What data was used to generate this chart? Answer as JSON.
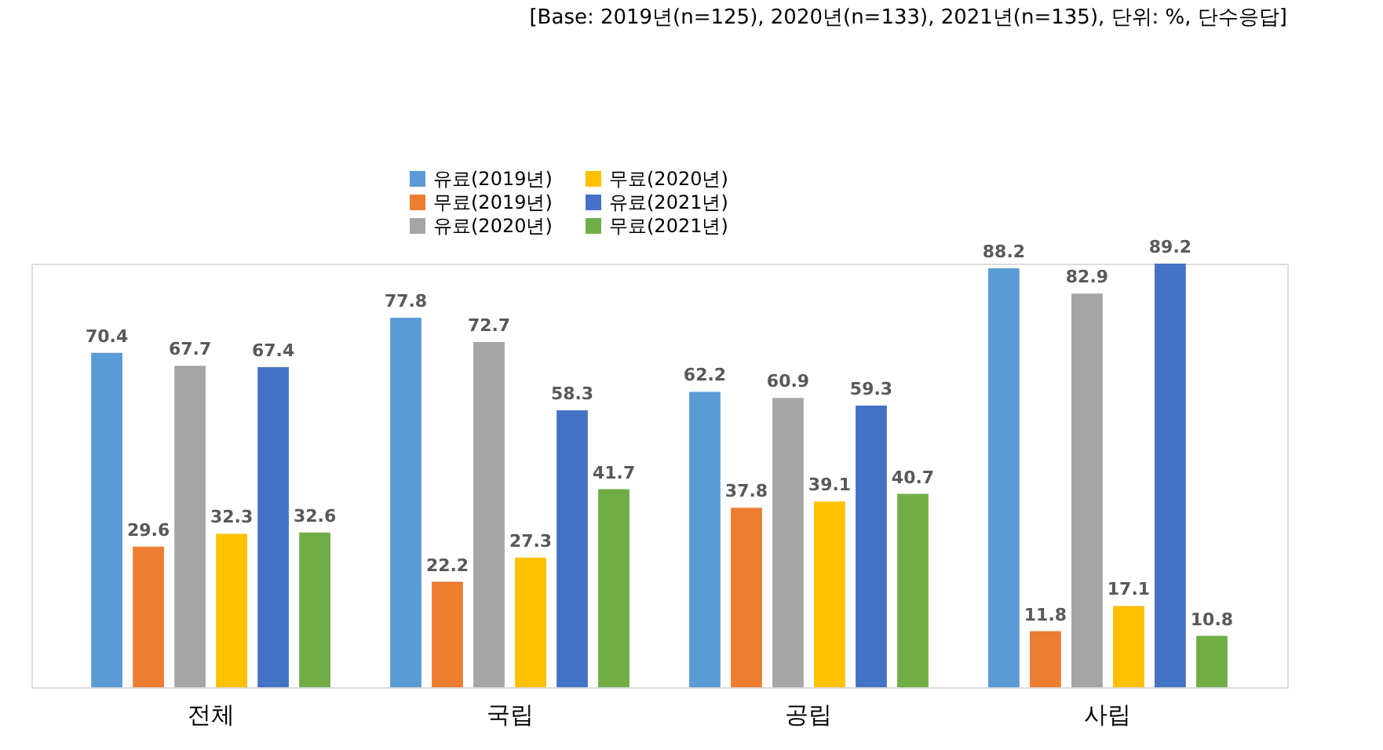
{
  "chart_data": {
    "type": "bar",
    "annotations": [
      "[Base: 2019년(n=125), 2020년(n=133), 2021년(n=135), 단위: %, 단수응답]"
    ],
    "categories": [
      "전체",
      "국립",
      "공립",
      "사립"
    ],
    "series": [
      {
        "name": "유료(2019년)",
        "color": "#5b9bd5",
        "values": [
          70.4,
          77.8,
          62.2,
          88.2
        ]
      },
      {
        "name": "무료(2019년)",
        "color": "#ed7d31",
        "values": [
          29.6,
          22.2,
          37.8,
          11.8
        ]
      },
      {
        "name": "유료(2020년)",
        "color": "#a5a5a5",
        "values": [
          67.7,
          72.7,
          60.9,
          82.9
        ]
      },
      {
        "name": "무료(2020년)",
        "color": "#ffc000",
        "values": [
          32.3,
          27.3,
          39.1,
          17.1
        ]
      },
      {
        "name": "유료(2021년)",
        "color": "#4472c4",
        "values": [
          67.4,
          58.3,
          59.3,
          89.2
        ]
      },
      {
        "name": "무료(2021년)",
        "color": "#70ad47",
        "values": [
          32.6,
          41.7,
          40.7,
          10.8
        ]
      }
    ],
    "data_labels": true,
    "legend": "top",
    "grid": false
  }
}
